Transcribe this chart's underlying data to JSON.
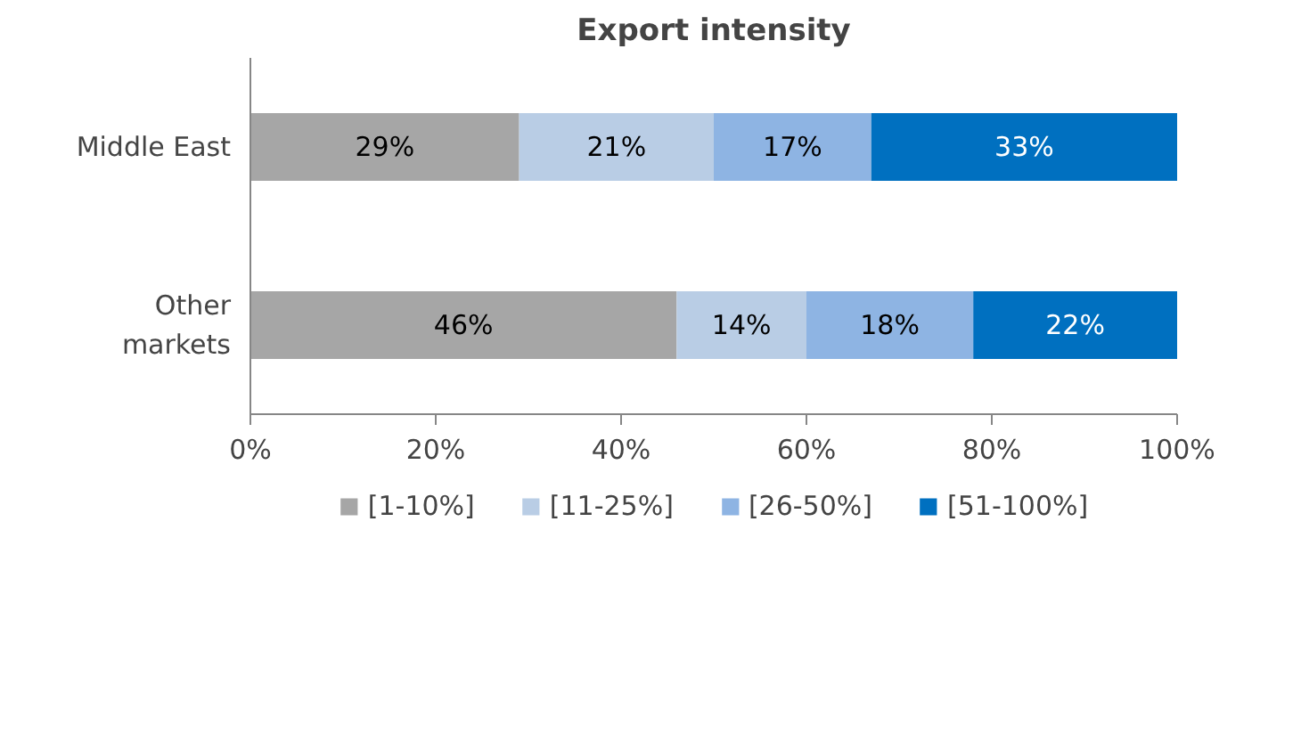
{
  "chart_data": {
    "type": "bar",
    "orientation": "horizontal",
    "stacked": true,
    "title": "Export intensity",
    "categories": [
      "Middle East",
      "Other markets"
    ],
    "series": [
      {
        "name": "[1-10%]",
        "color": "#a6a6a6",
        "values": [
          29,
          46
        ],
        "value_labels": [
          "29%",
          "46%"
        ]
      },
      {
        "name": "[11-25%]",
        "color": "#b9cde5",
        "values": [
          21,
          14
        ],
        "value_labels": [
          "21%",
          "14%"
        ]
      },
      {
        "name": "[26-50%]",
        "color": "#8eb4e3",
        "values": [
          17,
          18
        ],
        "value_labels": [
          "17%",
          "18%"
        ]
      },
      {
        "name": "[51-100%]",
        "color": "#0070c0",
        "values": [
          33,
          22
        ],
        "value_labels": [
          "33%",
          "22%"
        ]
      }
    ],
    "xlim": [
      0,
      100
    ],
    "xticks": [
      {
        "value": 0,
        "label": "0%"
      },
      {
        "value": 20,
        "label": "20%"
      },
      {
        "value": 40,
        "label": "40%"
      },
      {
        "value": 60,
        "label": "60%"
      },
      {
        "value": 80,
        "label": "80%"
      },
      {
        "value": 100,
        "label": "100%"
      }
    ],
    "legend": "bottom",
    "data_labels": true,
    "grid": false
  }
}
